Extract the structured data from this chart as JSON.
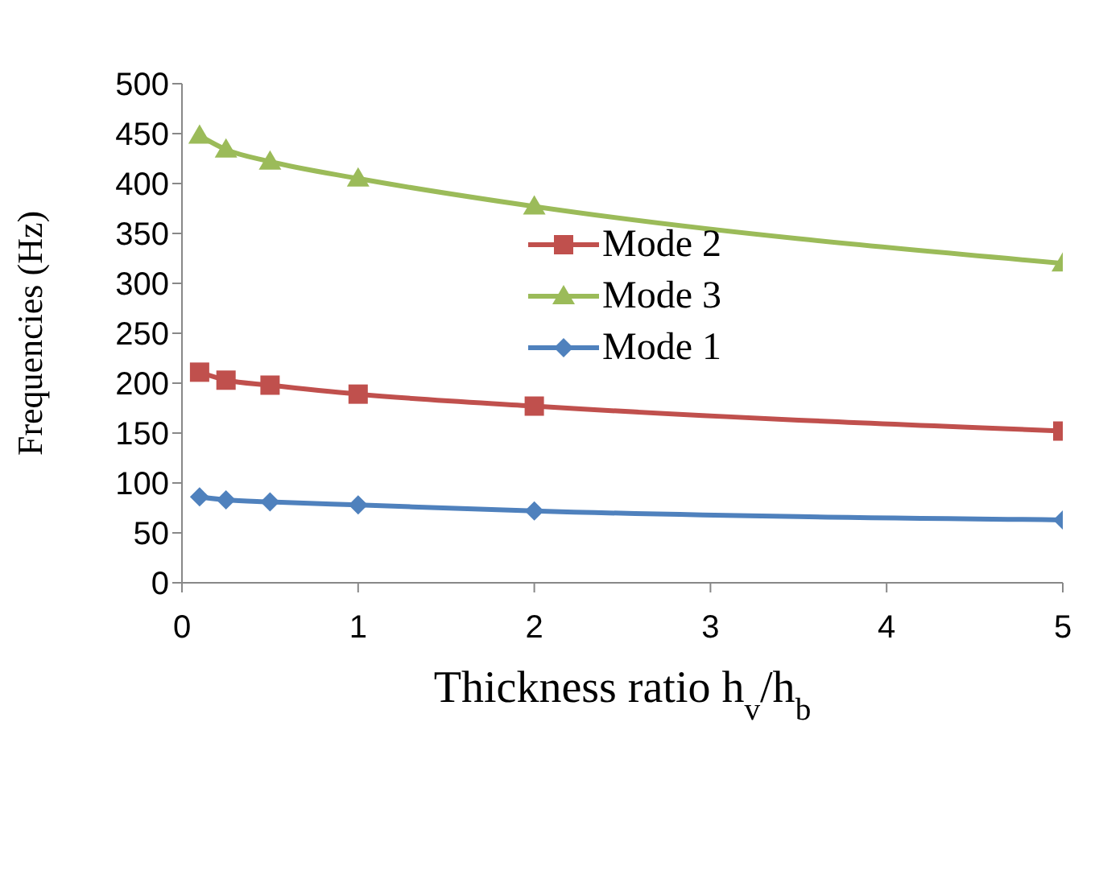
{
  "chart_data": {
    "type": "line",
    "xlabel": "Thickness ratio h$_{v}$/h$_{b}$",
    "ylabel": "Frequencies (Hz)",
    "x": [
      0.1,
      0.25,
      0.5,
      1,
      2,
      5
    ],
    "series": [
      {
        "name": "Mode 2",
        "color": "#c0504d",
        "marker": "square",
        "values": [
          211,
          203,
          198,
          189,
          177,
          152
        ]
      },
      {
        "name": "Mode 3",
        "color": "#9bbb59",
        "marker": "triangle",
        "values": [
          448,
          434,
          422,
          405,
          377,
          320
        ]
      },
      {
        "name": "Mode 1",
        "color": "#4f81bd",
        "marker": "diamond",
        "values": [
          86,
          83,
          81,
          78,
          72,
          63
        ]
      }
    ],
    "xlim": [
      0,
      5
    ],
    "xticks": [
      0,
      1,
      2,
      3,
      4,
      5
    ],
    "ylim": [
      0,
      500
    ],
    "yticks": [
      0,
      50,
      100,
      150,
      200,
      250,
      300,
      350,
      400,
      450,
      500
    ],
    "grid": false,
    "legend": "center",
    "line_style": "solid"
  }
}
